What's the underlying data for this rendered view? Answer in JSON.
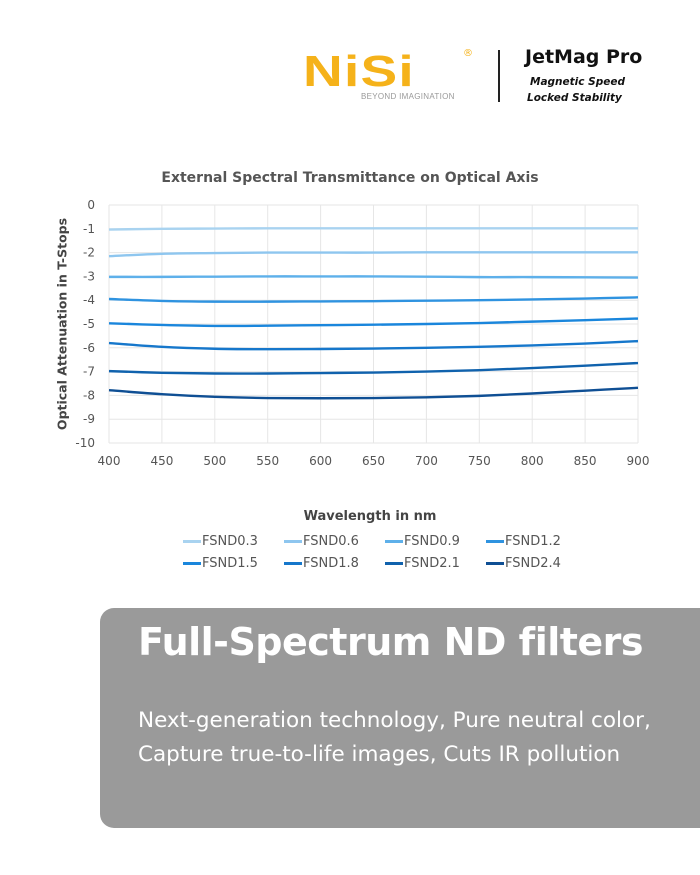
{
  "header": {
    "brand": "NiSi",
    "brand_tagline": "BEYOND IMAGINATION",
    "brand_color": "#f5b21a",
    "product": "JetMag Pro",
    "subtitle_line1": "Magnetic Speed",
    "subtitle_line2": "Locked  Stability"
  },
  "chart_data": {
    "type": "line",
    "title": "External Spectral Transmittance on Optical Axis",
    "xlabel": "Wavelength in nm",
    "ylabel": "Optical Attenuation in T-Stops",
    "xlim": [
      400,
      900
    ],
    "ylim": [
      -10,
      0
    ],
    "xticks": [
      400,
      450,
      500,
      550,
      600,
      650,
      700,
      750,
      800,
      850,
      900
    ],
    "yticks": [
      0,
      -1,
      -2,
      -3,
      -4,
      -5,
      -6,
      -7,
      -8,
      -9,
      -10
    ],
    "grid": true,
    "legend_position": "bottom",
    "x": [
      400,
      450,
      500,
      550,
      600,
      650,
      700,
      750,
      800,
      850,
      900
    ],
    "series": [
      {
        "name": "FSND0.3",
        "color": "#a9d3f0",
        "values": [
          -1.03,
          -1.0,
          -0.99,
          -0.98,
          -0.98,
          -0.98,
          -0.98,
          -0.98,
          -0.98,
          -0.98,
          -0.98
        ]
      },
      {
        "name": "FSND0.6",
        "color": "#8ec6ef",
        "values": [
          -2.15,
          -2.05,
          -2.02,
          -2.0,
          -2.0,
          -2.0,
          -1.99,
          -1.99,
          -1.99,
          -1.99,
          -1.99
        ]
      },
      {
        "name": "FSND0.9",
        "color": "#5eb0ea",
        "values": [
          -3.02,
          -3.02,
          -3.01,
          -3.0,
          -3.0,
          -3.0,
          -3.01,
          -3.03,
          -3.03,
          -3.04,
          -3.05
        ]
      },
      {
        "name": "FSND1.2",
        "color": "#2f93e0",
        "values": [
          -3.95,
          -4.03,
          -4.06,
          -4.06,
          -4.05,
          -4.04,
          -4.02,
          -4.0,
          -3.97,
          -3.93,
          -3.88
        ]
      },
      {
        "name": "FSND1.5",
        "color": "#1a86dc",
        "values": [
          -4.97,
          -5.04,
          -5.08,
          -5.07,
          -5.05,
          -5.03,
          -5.0,
          -4.96,
          -4.9,
          -4.84,
          -4.77
        ]
      },
      {
        "name": "FSND1.8",
        "color": "#1677cb",
        "values": [
          -5.8,
          -5.96,
          -6.04,
          -6.06,
          -6.05,
          -6.03,
          -6.0,
          -5.96,
          -5.9,
          -5.82,
          -5.72
        ]
      },
      {
        "name": "FSND2.1",
        "color": "#1062ad",
        "values": [
          -6.98,
          -7.05,
          -7.08,
          -7.08,
          -7.06,
          -7.04,
          -7.0,
          -6.94,
          -6.85,
          -6.75,
          -6.64
        ]
      },
      {
        "name": "FSND2.4",
        "color": "#0f4f94",
        "values": [
          -7.78,
          -7.95,
          -8.06,
          -8.11,
          -8.12,
          -8.11,
          -8.08,
          -8.02,
          -7.92,
          -7.8,
          -7.68
        ]
      }
    ]
  },
  "banner": {
    "heading": "Full-Spectrum ND filters",
    "text": "Next-generation technology, Pure neutral color, Capture true-to-life images, Cuts IR pollution"
  }
}
